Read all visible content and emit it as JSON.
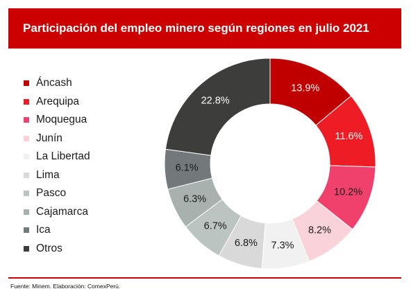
{
  "header": {
    "title": "Participación del empleo minero según regiones en julio 2021"
  },
  "footer": {
    "source": "Fuente: Minem. Elaboración: ComexPerú."
  },
  "colors": {
    "brand_red": "#cc0000",
    "label_light": "#ffffff",
    "label_dark": "#1a1a1a"
  },
  "chart_data": {
    "type": "pie",
    "donut": true,
    "title": "Participación del empleo minero según regiones en julio 2021",
    "legend_position": "left",
    "unit": "%",
    "categories": [
      "Áncash",
      "Arequipa",
      "Moquegua",
      "Junín",
      "La Libertad",
      "Lima",
      "Pasco",
      "Cajamarca",
      "Ica",
      "Otros"
    ],
    "values": [
      13.9,
      11.6,
      10.2,
      8.2,
      7.3,
      6.8,
      6.7,
      6.3,
      6.1,
      22.8
    ],
    "value_labels": [
      "13.9%",
      "11.6%",
      "10.2%",
      "8.2%",
      "7.3%",
      "6.8%",
      "6.7%",
      "6.3%",
      "6.1%",
      "22.8%"
    ],
    "colors": [
      "#c00000",
      "#ee1c25",
      "#f0416c",
      "#fad3da",
      "#f1f1f1",
      "#d8d9d8",
      "#bcc4c1",
      "#a9b1af",
      "#73787a",
      "#3d3d3b"
    ],
    "label_colors": [
      "#ffffff",
      "#ffffff",
      "#1a1a1a",
      "#1a1a1a",
      "#1a1a1a",
      "#1a1a1a",
      "#1a1a1a",
      "#1a1a1a",
      "#1a1a1a",
      "#ffffff"
    ]
  }
}
